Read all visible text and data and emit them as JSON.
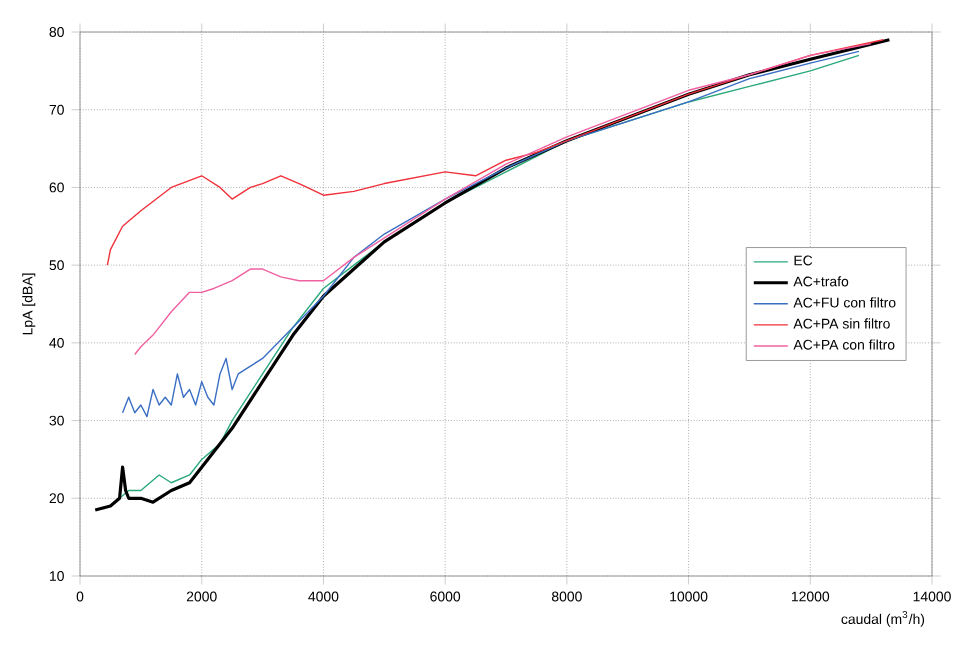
{
  "chart_data": {
    "type": "line",
    "xlabel": "caudal (m$^{3}$/h)",
    "ylabel": "LpA [dBA]",
    "xlim": [
      0,
      14000
    ],
    "ylim": [
      10,
      80
    ],
    "xticks": [
      0,
      2000,
      4000,
      6000,
      8000,
      10000,
      12000,
      14000
    ],
    "yticks": [
      10,
      20,
      30,
      40,
      50,
      60,
      70,
      80
    ],
    "grid": true,
    "legend": "right",
    "line_style": "solid",
    "marker": "none",
    "series": [
      {
        "name": "EC",
        "color": "#2aa87a",
        "x": [
          500,
          800,
          1000,
          1300,
          1500,
          1800,
          2000,
          2300,
          2500,
          3000,
          3500,
          4000,
          4500,
          5000,
          6000,
          7000,
          8000,
          9000,
          10000,
          11000,
          12000,
          12800
        ],
        "values": [
          19,
          21,
          21,
          23,
          22,
          23,
          25,
          27,
          30,
          36,
          42,
          47,
          50,
          53,
          58,
          62,
          66,
          68.5,
          71,
          73,
          75,
          77
        ]
      },
      {
        "name": "AC+trafo",
        "color": "#000000",
        "x": [
          250,
          500,
          650,
          700,
          750,
          800,
          1000,
          1200,
          1500,
          1800,
          2000,
          2500,
          3000,
          3500,
          4000,
          4500,
          5000,
          6000,
          7000,
          8000,
          9000,
          10000,
          11000,
          12000,
          13300
        ],
        "values": [
          18.5,
          19,
          20,
          24,
          21,
          20,
          20,
          19.5,
          21,
          22,
          24,
          29,
          35,
          41,
          46,
          49.5,
          53,
          58,
          62.5,
          66,
          69,
          72,
          74.5,
          76.5,
          79
        ]
      },
      {
        "name": "AC+FU con filtro",
        "color": "#3a6fc4",
        "x": [
          700,
          800,
          900,
          1000,
          1100,
          1200,
          1300,
          1400,
          1500,
          1600,
          1700,
          1800,
          1900,
          2000,
          2100,
          2200,
          2300,
          2400,
          2500,
          2600,
          2800,
          3000,
          3500,
          4000,
          4500,
          5000,
          6000,
          7000,
          8000,
          9000,
          10000,
          11000,
          12000,
          12800
        ],
        "values": [
          31,
          33,
          31,
          32,
          30.5,
          34,
          32,
          33,
          32,
          36,
          33,
          34,
          32,
          35,
          33,
          32,
          36,
          38,
          34,
          36,
          37,
          38,
          42,
          46,
          51,
          54,
          58.5,
          62.5,
          66,
          68.5,
          71,
          74,
          76,
          77.5
        ]
      },
      {
        "name": "AC+PA sin filtro",
        "color": "#f0303a",
        "x": [
          450,
          500,
          700,
          1000,
          1500,
          2000,
          2300,
          2500,
          2800,
          3000,
          3300,
          3600,
          4000,
          4500,
          5000,
          6000,
          6500,
          7000,
          7500,
          8000,
          9000,
          10000,
          11000,
          12000,
          13200
        ],
        "values": [
          50,
          52,
          55,
          57,
          60,
          61.5,
          60,
          58.5,
          60,
          60.5,
          61.5,
          60.5,
          59,
          59.5,
          60.5,
          62,
          61.5,
          63.5,
          64.5,
          66,
          69,
          72,
          74.5,
          77,
          79
        ]
      },
      {
        "name": "AC+PA con filtro",
        "color": "#f060a0",
        "x": [
          900,
          1000,
          1200,
          1500,
          1800,
          2000,
          2200,
          2500,
          2800,
          3000,
          3300,
          3600,
          4000,
          4500,
          5000,
          6000,
          7000,
          8000,
          9000,
          10000,
          11000,
          12000,
          13000
        ],
        "values": [
          38.5,
          39.5,
          41,
          44,
          46.5,
          46.5,
          47,
          48,
          49.5,
          49.5,
          48.5,
          48,
          48,
          51,
          53.5,
          58.5,
          63,
          66.5,
          69.5,
          72.5,
          74.5,
          77,
          78.5
        ]
      }
    ]
  }
}
